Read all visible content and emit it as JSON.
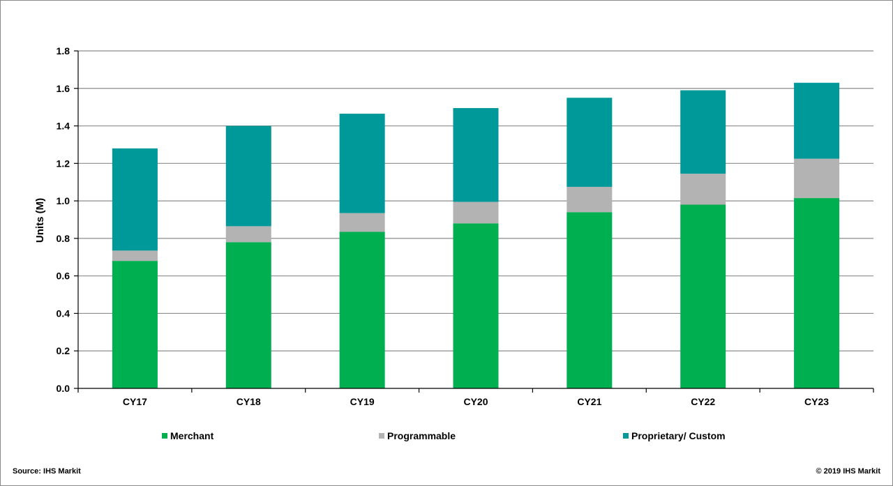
{
  "chart_data": {
    "type": "bar",
    "stacked": true,
    "categories": [
      "CY17",
      "CY18",
      "CY19",
      "CY20",
      "CY21",
      "CY22",
      "CY23"
    ],
    "series": [
      {
        "name": "Merchant",
        "color": "#00b050",
        "values": [
          0.68,
          0.78,
          0.835,
          0.88,
          0.94,
          0.98,
          1.015
        ]
      },
      {
        "name": "Programmable",
        "color": "#b3b3b3",
        "values": [
          0.055,
          0.085,
          0.1,
          0.115,
          0.135,
          0.165,
          0.21
        ]
      },
      {
        "name": "Proprietary/ Custom",
        "color": "#009999",
        "values": [
          0.545,
          0.535,
          0.53,
          0.5,
          0.475,
          0.445,
          0.405
        ]
      }
    ],
    "title": "",
    "xlabel": "",
    "ylabel": "Units (M)",
    "ylim": [
      0,
      1.8
    ],
    "yticks": [
      "0.0",
      "0.2",
      "0.4",
      "0.6",
      "0.8",
      "1.0",
      "1.2",
      "1.4",
      "1.6",
      "1.8"
    ],
    "grid": true,
    "legend_position": "bottom"
  },
  "footer": {
    "source": "Source: IHS Markit",
    "copyright": "© 2019 IHS Markit"
  }
}
